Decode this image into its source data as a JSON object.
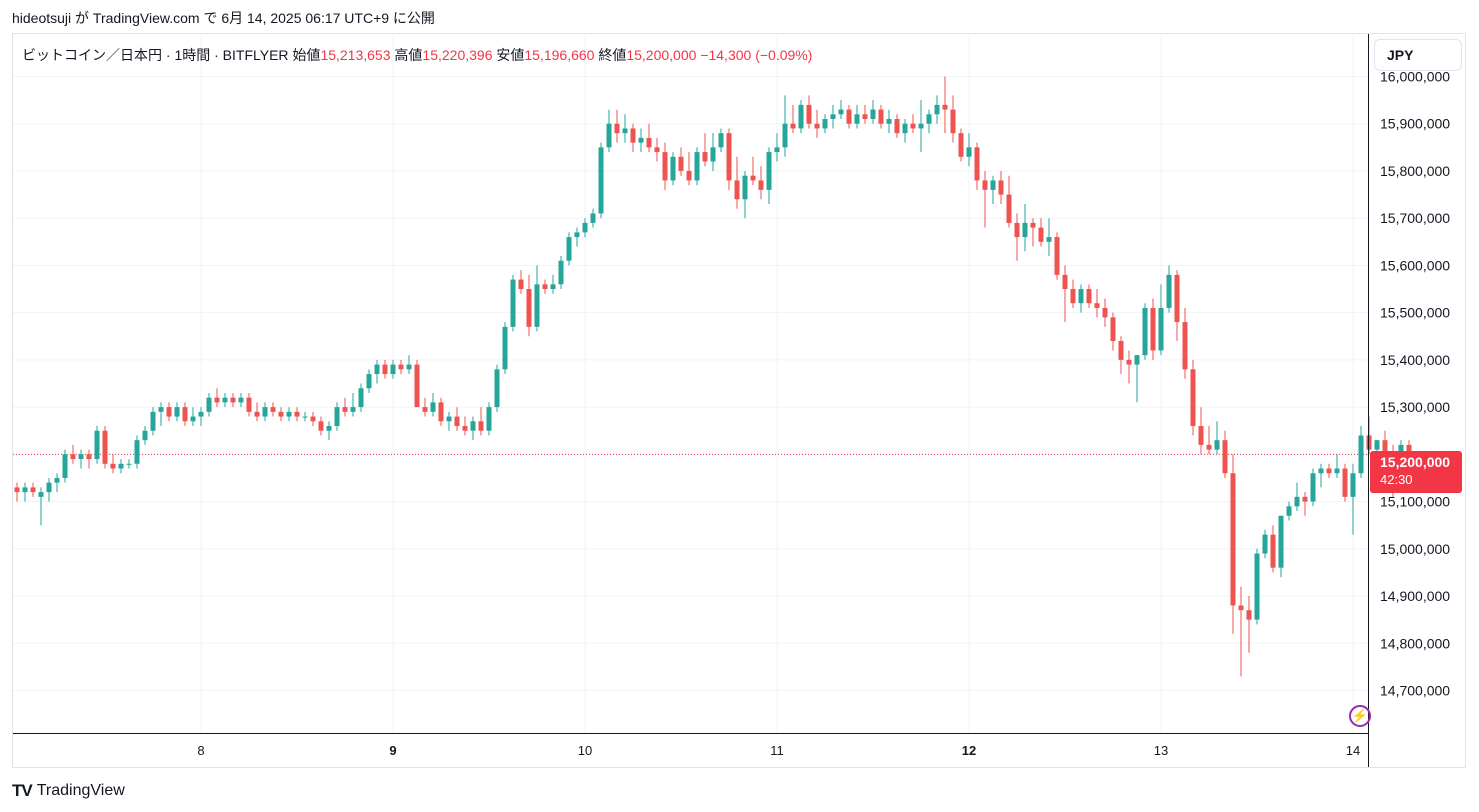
{
  "header": {
    "text": "hideotsuji が TradingView.com で 6月 14, 2025 06:17 UTC+9 に公開"
  },
  "legend": {
    "symbol": "ビットコイン／日本円 · 1時間 · BITFLYER",
    "open_label": "始値",
    "open": "15,213,653",
    "high_label": "高値",
    "high": "15,220,396",
    "low_label": "安値",
    "low": "15,196,660",
    "close_label": "終値",
    "close": "15,200,000",
    "change": "−14,300 (−0.09%)"
  },
  "currency_button": "JPY",
  "price_tag": {
    "price": "15,200,000",
    "countdown": "42:30"
  },
  "brand": {
    "logo_text": "TV",
    "name": "TradingView"
  },
  "colors": {
    "up": "#26a69a",
    "down": "#ef5350",
    "grid": "#f0f3fa",
    "last_price": "#f23645",
    "accent": "#9c27b0"
  },
  "chart_data": {
    "type": "candlestick",
    "interval": "1h",
    "y_ticks": [
      16000000,
      15900000,
      15800000,
      15700000,
      15600000,
      15500000,
      15400000,
      15300000,
      15200000,
      15100000,
      15000000,
      14900000,
      14800000,
      14700000
    ],
    "y_tick_labels": [
      "16,000,000",
      "15,900,000",
      "15,800,000",
      "15,700,000",
      "15,600,000",
      "15,500,000",
      "15,400,000",
      "15,300,000",
      "15,200,000",
      "15,100,000",
      "15,000,000",
      "14,900,000",
      "14,800,000",
      "14,700,000"
    ],
    "x_tick_labels": [
      {
        "label": "8",
        "bar": 23
      },
      {
        "label": "9",
        "bar": 47
      },
      {
        "label": "10",
        "bar": 71
      },
      {
        "label": "11",
        "bar": 95
      },
      {
        "label": "12",
        "bar": 119
      },
      {
        "label": "13",
        "bar": 143
      },
      {
        "label": "14",
        "bar": 167
      }
    ],
    "y_range": [
      14610000,
      16090000
    ],
    "last_price": 15200000,
    "candles": [
      [
        15130000,
        15140000,
        15100000,
        15120000
      ],
      [
        15120000,
        15140000,
        15100000,
        15130000
      ],
      [
        15130000,
        15140000,
        15110000,
        15120000
      ],
      [
        15110000,
        15130000,
        15050000,
        15120000
      ],
      [
        15120000,
        15150000,
        15100000,
        15140000
      ],
      [
        15140000,
        15160000,
        15120000,
        15150000
      ],
      [
        15150000,
        15210000,
        15140000,
        15200000
      ],
      [
        15200000,
        15220000,
        15180000,
        15190000
      ],
      [
        15190000,
        15210000,
        15170000,
        15200000
      ],
      [
        15200000,
        15210000,
        15170000,
        15190000
      ],
      [
        15190000,
        15260000,
        15180000,
        15250000
      ],
      [
        15250000,
        15260000,
        15170000,
        15180000
      ],
      [
        15180000,
        15200000,
        15160000,
        15170000
      ],
      [
        15170000,
        15190000,
        15160000,
        15180000
      ],
      [
        15180000,
        15190000,
        15170000,
        15180000
      ],
      [
        15180000,
        15240000,
        15170000,
        15230000
      ],
      [
        15230000,
        15260000,
        15220000,
        15250000
      ],
      [
        15250000,
        15300000,
        15240000,
        15290000
      ],
      [
        15290000,
        15310000,
        15260000,
        15300000
      ],
      [
        15300000,
        15310000,
        15270000,
        15280000
      ],
      [
        15280000,
        15310000,
        15270000,
        15300000
      ],
      [
        15300000,
        15310000,
        15260000,
        15270000
      ],
      [
        15270000,
        15300000,
        15260000,
        15280000
      ],
      [
        15280000,
        15300000,
        15260000,
        15290000
      ],
      [
        15290000,
        15330000,
        15280000,
        15320000
      ],
      [
        15320000,
        15340000,
        15300000,
        15310000
      ],
      [
        15310000,
        15330000,
        15300000,
        15320000
      ],
      [
        15320000,
        15330000,
        15300000,
        15310000
      ],
      [
        15310000,
        15330000,
        15300000,
        15320000
      ],
      [
        15320000,
        15330000,
        15280000,
        15290000
      ],
      [
        15290000,
        15310000,
        15270000,
        15280000
      ],
      [
        15280000,
        15310000,
        15270000,
        15300000
      ],
      [
        15300000,
        15310000,
        15280000,
        15290000
      ],
      [
        15290000,
        15300000,
        15270000,
        15280000
      ],
      [
        15280000,
        15300000,
        15270000,
        15290000
      ],
      [
        15290000,
        15300000,
        15270000,
        15280000
      ],
      [
        15280000,
        15290000,
        15270000,
        15280000
      ],
      [
        15280000,
        15290000,
        15260000,
        15270000
      ],
      [
        15270000,
        15280000,
        15240000,
        15250000
      ],
      [
        15250000,
        15270000,
        15230000,
        15260000
      ],
      [
        15260000,
        15310000,
        15250000,
        15300000
      ],
      [
        15300000,
        15320000,
        15280000,
        15290000
      ],
      [
        15290000,
        15330000,
        15280000,
        15300000
      ],
      [
        15300000,
        15350000,
        15290000,
        15340000
      ],
      [
        15340000,
        15380000,
        15330000,
        15370000
      ],
      [
        15370000,
        15400000,
        15350000,
        15390000
      ],
      [
        15390000,
        15400000,
        15360000,
        15370000
      ],
      [
        15370000,
        15400000,
        15360000,
        15390000
      ],
      [
        15390000,
        15400000,
        15370000,
        15380000
      ],
      [
        15380000,
        15410000,
        15370000,
        15390000
      ],
      [
        15390000,
        15400000,
        15300000,
        15300000
      ],
      [
        15300000,
        15320000,
        15280000,
        15290000
      ],
      [
        15290000,
        15330000,
        15280000,
        15310000
      ],
      [
        15310000,
        15320000,
        15260000,
        15270000
      ],
      [
        15270000,
        15290000,
        15250000,
        15280000
      ],
      [
        15280000,
        15300000,
        15250000,
        15260000
      ],
      [
        15260000,
        15280000,
        15240000,
        15250000
      ],
      [
        15250000,
        15280000,
        15230000,
        15270000
      ],
      [
        15270000,
        15300000,
        15240000,
        15250000
      ],
      [
        15250000,
        15310000,
        15240000,
        15300000
      ],
      [
        15300000,
        15390000,
        15290000,
        15380000
      ],
      [
        15380000,
        15480000,
        15370000,
        15470000
      ],
      [
        15470000,
        15580000,
        15460000,
        15570000
      ],
      [
        15570000,
        15590000,
        15540000,
        15550000
      ],
      [
        15550000,
        15580000,
        15450000,
        15470000
      ],
      [
        15470000,
        15600000,
        15460000,
        15560000
      ],
      [
        15560000,
        15570000,
        15540000,
        15550000
      ],
      [
        15550000,
        15580000,
        15540000,
        15560000
      ],
      [
        15560000,
        15620000,
        15550000,
        15610000
      ],
      [
        15610000,
        15670000,
        15600000,
        15660000
      ],
      [
        15660000,
        15680000,
        15640000,
        15670000
      ],
      [
        15670000,
        15700000,
        15660000,
        15690000
      ],
      [
        15690000,
        15720000,
        15680000,
        15710000
      ],
      [
        15710000,
        15860000,
        15700000,
        15850000
      ],
      [
        15850000,
        15930000,
        15840000,
        15900000
      ],
      [
        15900000,
        15930000,
        15860000,
        15880000
      ],
      [
        15880000,
        15920000,
        15860000,
        15890000
      ],
      [
        15890000,
        15900000,
        15840000,
        15860000
      ],
      [
        15860000,
        15890000,
        15840000,
        15870000
      ],
      [
        15870000,
        15900000,
        15840000,
        15850000
      ],
      [
        15850000,
        15870000,
        15820000,
        15840000
      ],
      [
        15840000,
        15860000,
        15760000,
        15780000
      ],
      [
        15780000,
        15840000,
        15770000,
        15830000
      ],
      [
        15830000,
        15850000,
        15790000,
        15800000
      ],
      [
        15800000,
        15840000,
        15770000,
        15780000
      ],
      [
        15780000,
        15850000,
        15770000,
        15840000
      ],
      [
        15840000,
        15880000,
        15810000,
        15820000
      ],
      [
        15820000,
        15880000,
        15800000,
        15850000
      ],
      [
        15850000,
        15890000,
        15840000,
        15880000
      ],
      [
        15880000,
        15890000,
        15760000,
        15780000
      ],
      [
        15780000,
        15830000,
        15720000,
        15740000
      ],
      [
        15740000,
        15800000,
        15700000,
        15790000
      ],
      [
        15790000,
        15830000,
        15770000,
        15780000
      ],
      [
        15780000,
        15810000,
        15740000,
        15760000
      ],
      [
        15760000,
        15850000,
        15730000,
        15840000
      ],
      [
        15840000,
        15880000,
        15820000,
        15850000
      ],
      [
        15850000,
        15960000,
        15830000,
        15900000
      ],
      [
        15900000,
        15940000,
        15880000,
        15890000
      ],
      [
        15890000,
        15950000,
        15880000,
        15940000
      ],
      [
        15940000,
        15960000,
        15890000,
        15900000
      ],
      [
        15900000,
        15930000,
        15870000,
        15890000
      ],
      [
        15890000,
        15920000,
        15880000,
        15910000
      ],
      [
        15910000,
        15940000,
        15890000,
        15920000
      ],
      [
        15920000,
        15950000,
        15910000,
        15930000
      ],
      [
        15930000,
        15940000,
        15890000,
        15900000
      ],
      [
        15900000,
        15940000,
        15890000,
        15920000
      ],
      [
        15920000,
        15940000,
        15900000,
        15910000
      ],
      [
        15910000,
        15950000,
        15900000,
        15930000
      ],
      [
        15930000,
        15940000,
        15890000,
        15900000
      ],
      [
        15900000,
        15930000,
        15880000,
        15910000
      ],
      [
        15910000,
        15920000,
        15870000,
        15880000
      ],
      [
        15880000,
        15910000,
        15860000,
        15900000
      ],
      [
        15900000,
        15920000,
        15880000,
        15890000
      ],
      [
        15890000,
        15950000,
        15840000,
        15900000
      ],
      [
        15900000,
        15930000,
        15880000,
        15920000
      ],
      [
        15920000,
        15960000,
        15900000,
        15940000
      ],
      [
        15940000,
        16000000,
        15880000,
        15930000
      ],
      [
        15930000,
        15960000,
        15860000,
        15880000
      ],
      [
        15880000,
        15890000,
        15820000,
        15830000
      ],
      [
        15830000,
        15880000,
        15810000,
        15850000
      ],
      [
        15850000,
        15860000,
        15760000,
        15780000
      ],
      [
        15780000,
        15800000,
        15680000,
        15760000
      ],
      [
        15760000,
        15790000,
        15730000,
        15780000
      ],
      [
        15780000,
        15800000,
        15730000,
        15750000
      ],
      [
        15750000,
        15790000,
        15680000,
        15690000
      ],
      [
        15690000,
        15710000,
        15610000,
        15660000
      ],
      [
        15660000,
        15730000,
        15630000,
        15690000
      ],
      [
        15690000,
        15700000,
        15640000,
        15680000
      ],
      [
        15680000,
        15700000,
        15640000,
        15650000
      ],
      [
        15650000,
        15700000,
        15620000,
        15660000
      ],
      [
        15660000,
        15670000,
        15570000,
        15580000
      ],
      [
        15580000,
        15600000,
        15480000,
        15550000
      ],
      [
        15550000,
        15570000,
        15510000,
        15520000
      ],
      [
        15520000,
        15560000,
        15500000,
        15550000
      ],
      [
        15550000,
        15560000,
        15510000,
        15520000
      ],
      [
        15520000,
        15550000,
        15490000,
        15510000
      ],
      [
        15510000,
        15530000,
        15470000,
        15490000
      ],
      [
        15490000,
        15500000,
        15420000,
        15440000
      ],
      [
        15440000,
        15450000,
        15370000,
        15400000
      ],
      [
        15400000,
        15420000,
        15350000,
        15390000
      ],
      [
        15390000,
        15410000,
        15310000,
        15410000
      ],
      [
        15410000,
        15520000,
        15400000,
        15510000
      ],
      [
        15510000,
        15530000,
        15400000,
        15420000
      ],
      [
        15420000,
        15560000,
        15410000,
        15510000
      ],
      [
        15510000,
        15600000,
        15500000,
        15580000
      ],
      [
        15580000,
        15590000,
        15440000,
        15480000
      ],
      [
        15480000,
        15510000,
        15360000,
        15380000
      ],
      [
        15380000,
        15400000,
        15240000,
        15260000
      ],
      [
        15260000,
        15300000,
        15200000,
        15220000
      ],
      [
        15220000,
        15260000,
        15200000,
        15210000
      ],
      [
        15210000,
        15270000,
        15200000,
        15230000
      ],
      [
        15230000,
        15250000,
        15150000,
        15160000
      ],
      [
        15160000,
        15200000,
        14820000,
        14880000
      ],
      [
        14880000,
        14920000,
        14730000,
        14870000
      ],
      [
        14870000,
        14900000,
        14780000,
        14850000
      ],
      [
        14850000,
        15000000,
        14840000,
        14990000
      ],
      [
        14990000,
        15040000,
        14980000,
        15030000
      ],
      [
        15030000,
        15050000,
        14950000,
        14960000
      ],
      [
        14960000,
        15070000,
        14940000,
        15070000
      ],
      [
        15070000,
        15100000,
        15060000,
        15090000
      ],
      [
        15090000,
        15140000,
        15080000,
        15110000
      ],
      [
        15110000,
        15120000,
        15070000,
        15100000
      ],
      [
        15100000,
        15170000,
        15090000,
        15160000
      ],
      [
        15160000,
        15180000,
        15130000,
        15170000
      ],
      [
        15170000,
        15180000,
        15150000,
        15160000
      ],
      [
        15160000,
        15200000,
        15150000,
        15170000
      ],
      [
        15170000,
        15180000,
        15100000,
        15110000
      ],
      [
        15110000,
        15180000,
        15030000,
        15160000
      ],
      [
        15160000,
        15260000,
        15150000,
        15240000
      ],
      [
        15240000,
        15280000,
        15200000,
        15210000
      ],
      [
        15210000,
        15230000,
        15200000,
        15230000
      ],
      [
        15230000,
        15250000,
        15180000,
        15190000
      ],
      [
        15190000,
        15220000,
        15110000,
        15150000
      ],
      [
        15150000,
        15230000,
        15140000,
        15220000
      ],
      [
        15220000,
        15230000,
        15196660,
        15200000
      ]
    ]
  }
}
